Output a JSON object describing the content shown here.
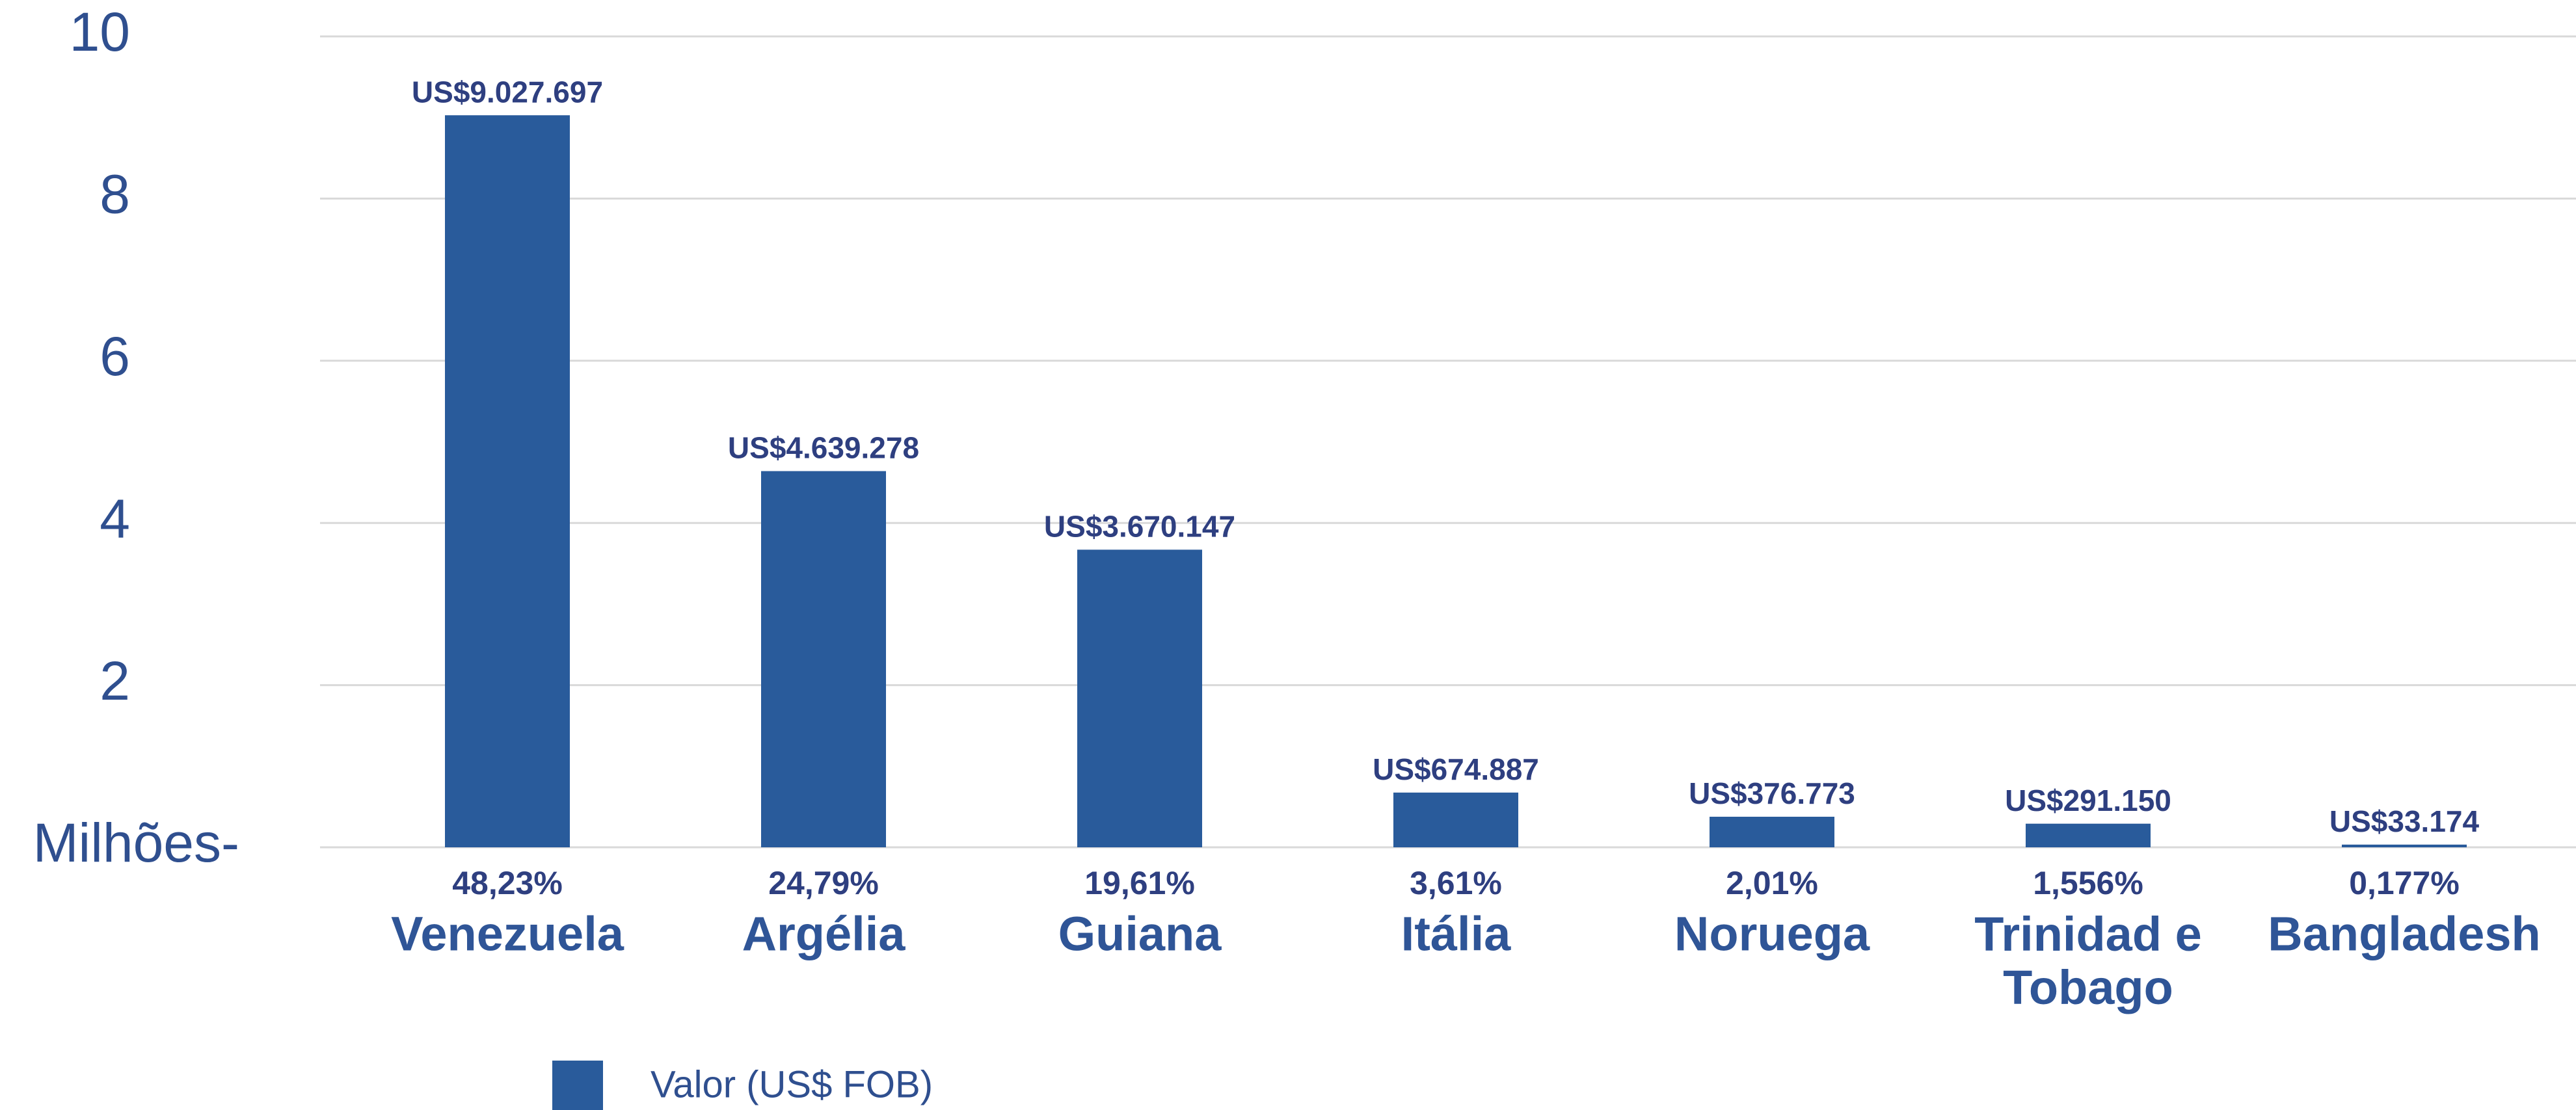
{
  "chart_data": {
    "type": "bar",
    "categories": [
      "Venezuela",
      "Argélia",
      "Guiana",
      "Itália",
      "Noruega",
      "Trinidad e Tobago",
      "Bangladesh"
    ],
    "share_labels": [
      "48,23%",
      "24,79%",
      "19,61%",
      "3,61%",
      "2,01%",
      "1,556%",
      "0,177%"
    ],
    "series": [
      {
        "name": "Valor (US$ FOB)",
        "color": "#295b9b",
        "values": [
          9.027697,
          4.639278,
          3.670147,
          0.674887,
          0.376773,
          0.29115,
          0.033174
        ],
        "value_labels": [
          "US$9.027.697",
          "US$4.639.278",
          "US$3.670.147",
          "US$674.887",
          "US$376.773",
          "US$291.150",
          "US$33.174"
        ]
      }
    ],
    "ylim": [
      0,
      10
    ],
    "yticks": [
      {
        "value": 0,
        "label": "Milhões-"
      },
      2,
      4,
      6,
      8,
      10
    ],
    "grid": true,
    "legend": "bottom"
  }
}
